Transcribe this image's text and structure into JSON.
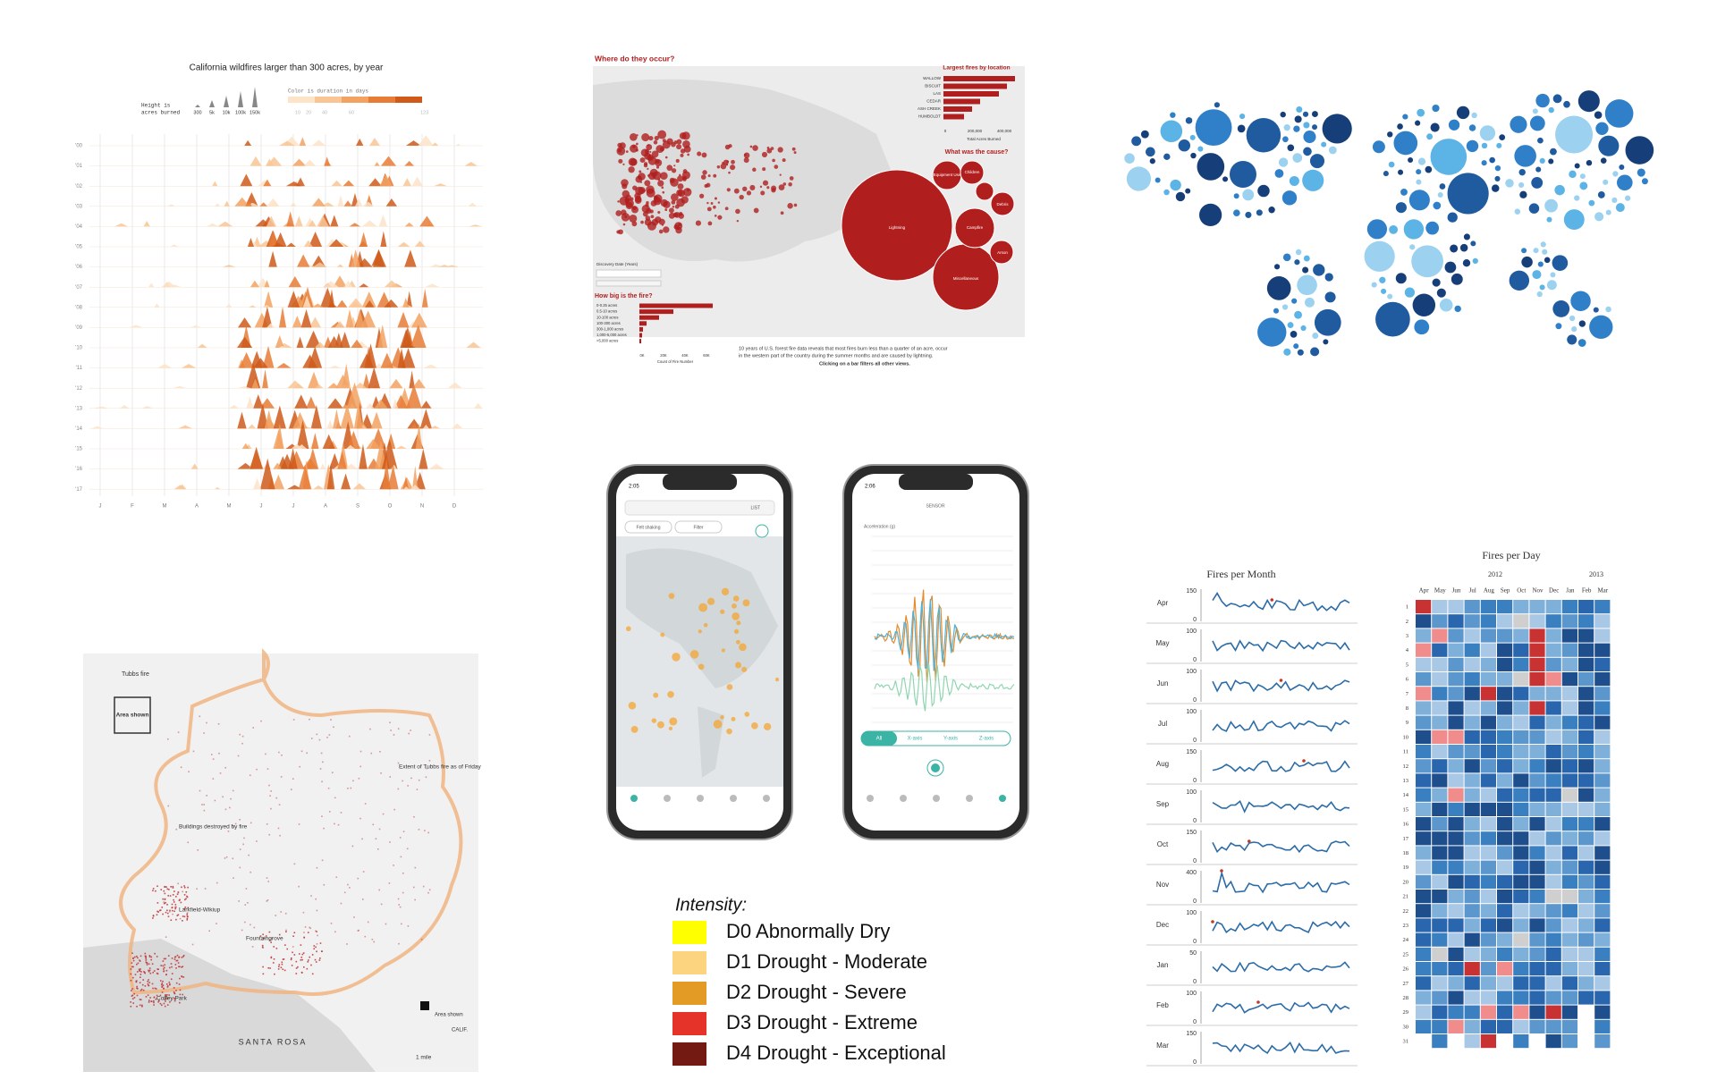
{
  "ridgeline": {
    "title": "California wildfires larger than 300 acres, by year",
    "height_legend": [
      "Height is",
      "acres burned"
    ],
    "height_ticks": [
      "300",
      "5k",
      "10k",
      "100k",
      "150k"
    ],
    "color_legend": "Color is duration in days",
    "color_ticks": [
      "10",
      "20",
      "40",
      "60",
      "123"
    ],
    "years": [
      "'00",
      "'01",
      "'02",
      "'03",
      "'04",
      "'05",
      "'06",
      "'07",
      "'08",
      "'09",
      "'10",
      "'11",
      "'12",
      "'13",
      "'14",
      "'15",
      "'16",
      "'17"
    ],
    "months": [
      "J",
      "F",
      "M",
      "A",
      "M",
      "J",
      "J",
      "A",
      "S",
      "O",
      "N",
      "D"
    ]
  },
  "tableau": {
    "title": "Where do they occur?",
    "largest_title": "Largest fires by location",
    "largest": [
      "WALLOW",
      "BISCUIT",
      "LAS",
      "CEDAR",
      "ASH CREEK",
      "HUMBOLDT"
    ],
    "largest_axis": [
      "0",
      "200,000",
      "400,000"
    ],
    "largest_axis_label": "Total Acres Burned",
    "cause_title": "What was the cause?",
    "causes": [
      "Lightning",
      "Miscellaneous",
      "Campfire",
      "Arson",
      "Debris",
      "Equipment Use",
      "Children"
    ],
    "date_label": "Discovery Date (Years)",
    "size_title": "How big is the fire?",
    "sizes": [
      "0-0.25 acres",
      "0.5-10 acres",
      "10-100 acres",
      "100-300 acres",
      "300-1,000 acres",
      "1,000-5,000 acres",
      ">5,000 acres"
    ],
    "size_axis": [
      "0K",
      "20K",
      "40K",
      "60K"
    ],
    "size_axis_label": "Count of Fire Number",
    "caption": [
      "10 years of U.S. forest fire data reveals that most fires burn less than a quarter of an acre, occur",
      "in the western part of the country during the summer months and are caused by lightning."
    ],
    "caption_bold": "Clicking on a bar filters all other views."
  },
  "phones": {
    "left": {
      "time": "2:05",
      "list": "LIST",
      "chips": [
        "Felt shaking",
        "Filter"
      ]
    },
    "right": {
      "time": "2:06",
      "header": "SENSOR",
      "axis_label": "Acceleration (g)",
      "tabs": [
        "All",
        "X-axis",
        "Y-axis",
        "Z-axis"
      ]
    }
  },
  "drought": {
    "title": "Intensity:",
    "items": [
      {
        "label": "D0 Abnormally Dry",
        "color": "#ffff00"
      },
      {
        "label": "D1 Drought - Moderate",
        "color": "#fcd37f"
      },
      {
        "label": "D2 Drought - Severe",
        "color": "#e49b25"
      },
      {
        "label": "D3 Drought - Extreme",
        "color": "#e63329"
      },
      {
        "label": "D4 Drought - Exceptional",
        "color": "#731a12"
      }
    ]
  },
  "fires_per_month": {
    "title": "Fires per Month",
    "rows": [
      {
        "month": "Apr",
        "top": "150",
        "bottom": "0"
      },
      {
        "month": "May",
        "top": "100",
        "bottom": "0"
      },
      {
        "month": "Jun",
        "top": "100",
        "bottom": "0"
      },
      {
        "month": "Jul",
        "top": "100",
        "bottom": "0"
      },
      {
        "month": "Aug",
        "top": "150",
        "bottom": "0"
      },
      {
        "month": "Sep",
        "top": "100",
        "bottom": "0"
      },
      {
        "month": "Oct",
        "top": "150",
        "bottom": "0"
      },
      {
        "month": "Nov",
        "top": "400",
        "bottom": "0"
      },
      {
        "month": "Dec",
        "top": "100",
        "bottom": "0"
      },
      {
        "month": "Jan",
        "top": "50",
        "bottom": "0"
      },
      {
        "month": "Feb",
        "top": "100",
        "bottom": "0"
      },
      {
        "month": "Mar",
        "top": "150",
        "bottom": "0"
      }
    ]
  },
  "fires_per_day": {
    "title": "Fires per Day",
    "years": [
      "2012",
      "2013"
    ],
    "months": [
      "Apr",
      "May",
      "Jun",
      "Jul",
      "Aug",
      "Sep",
      "Oct",
      "Nov",
      "Dec",
      "Jan",
      "Feb",
      "Mar"
    ],
    "days": [
      "1",
      "2",
      "3",
      "4",
      "5",
      "6",
      "7",
      "8",
      "9",
      "10",
      "11",
      "12",
      "13",
      "14",
      "15",
      "16",
      "17",
      "18",
      "19",
      "20",
      "21",
      "22",
      "23",
      "24",
      "25",
      "26",
      "27",
      "28",
      "29",
      "30",
      "31"
    ]
  },
  "santa_rosa": {
    "labels": {
      "tubbs": "Tubbs fire",
      "area": "Area shown",
      "extent": "Extent of Tubbs fire as of Friday",
      "buildings": "Buildings destroyed by fire",
      "larkfield": "Larkfield-Wikiup",
      "fountaingrove": "Fountaingrove",
      "coffey": "Coffey Park",
      "city": "SANTA ROSA",
      "scale": "1 mile",
      "calif": "CALIF.",
      "area2": "Area shown"
    }
  }
}
